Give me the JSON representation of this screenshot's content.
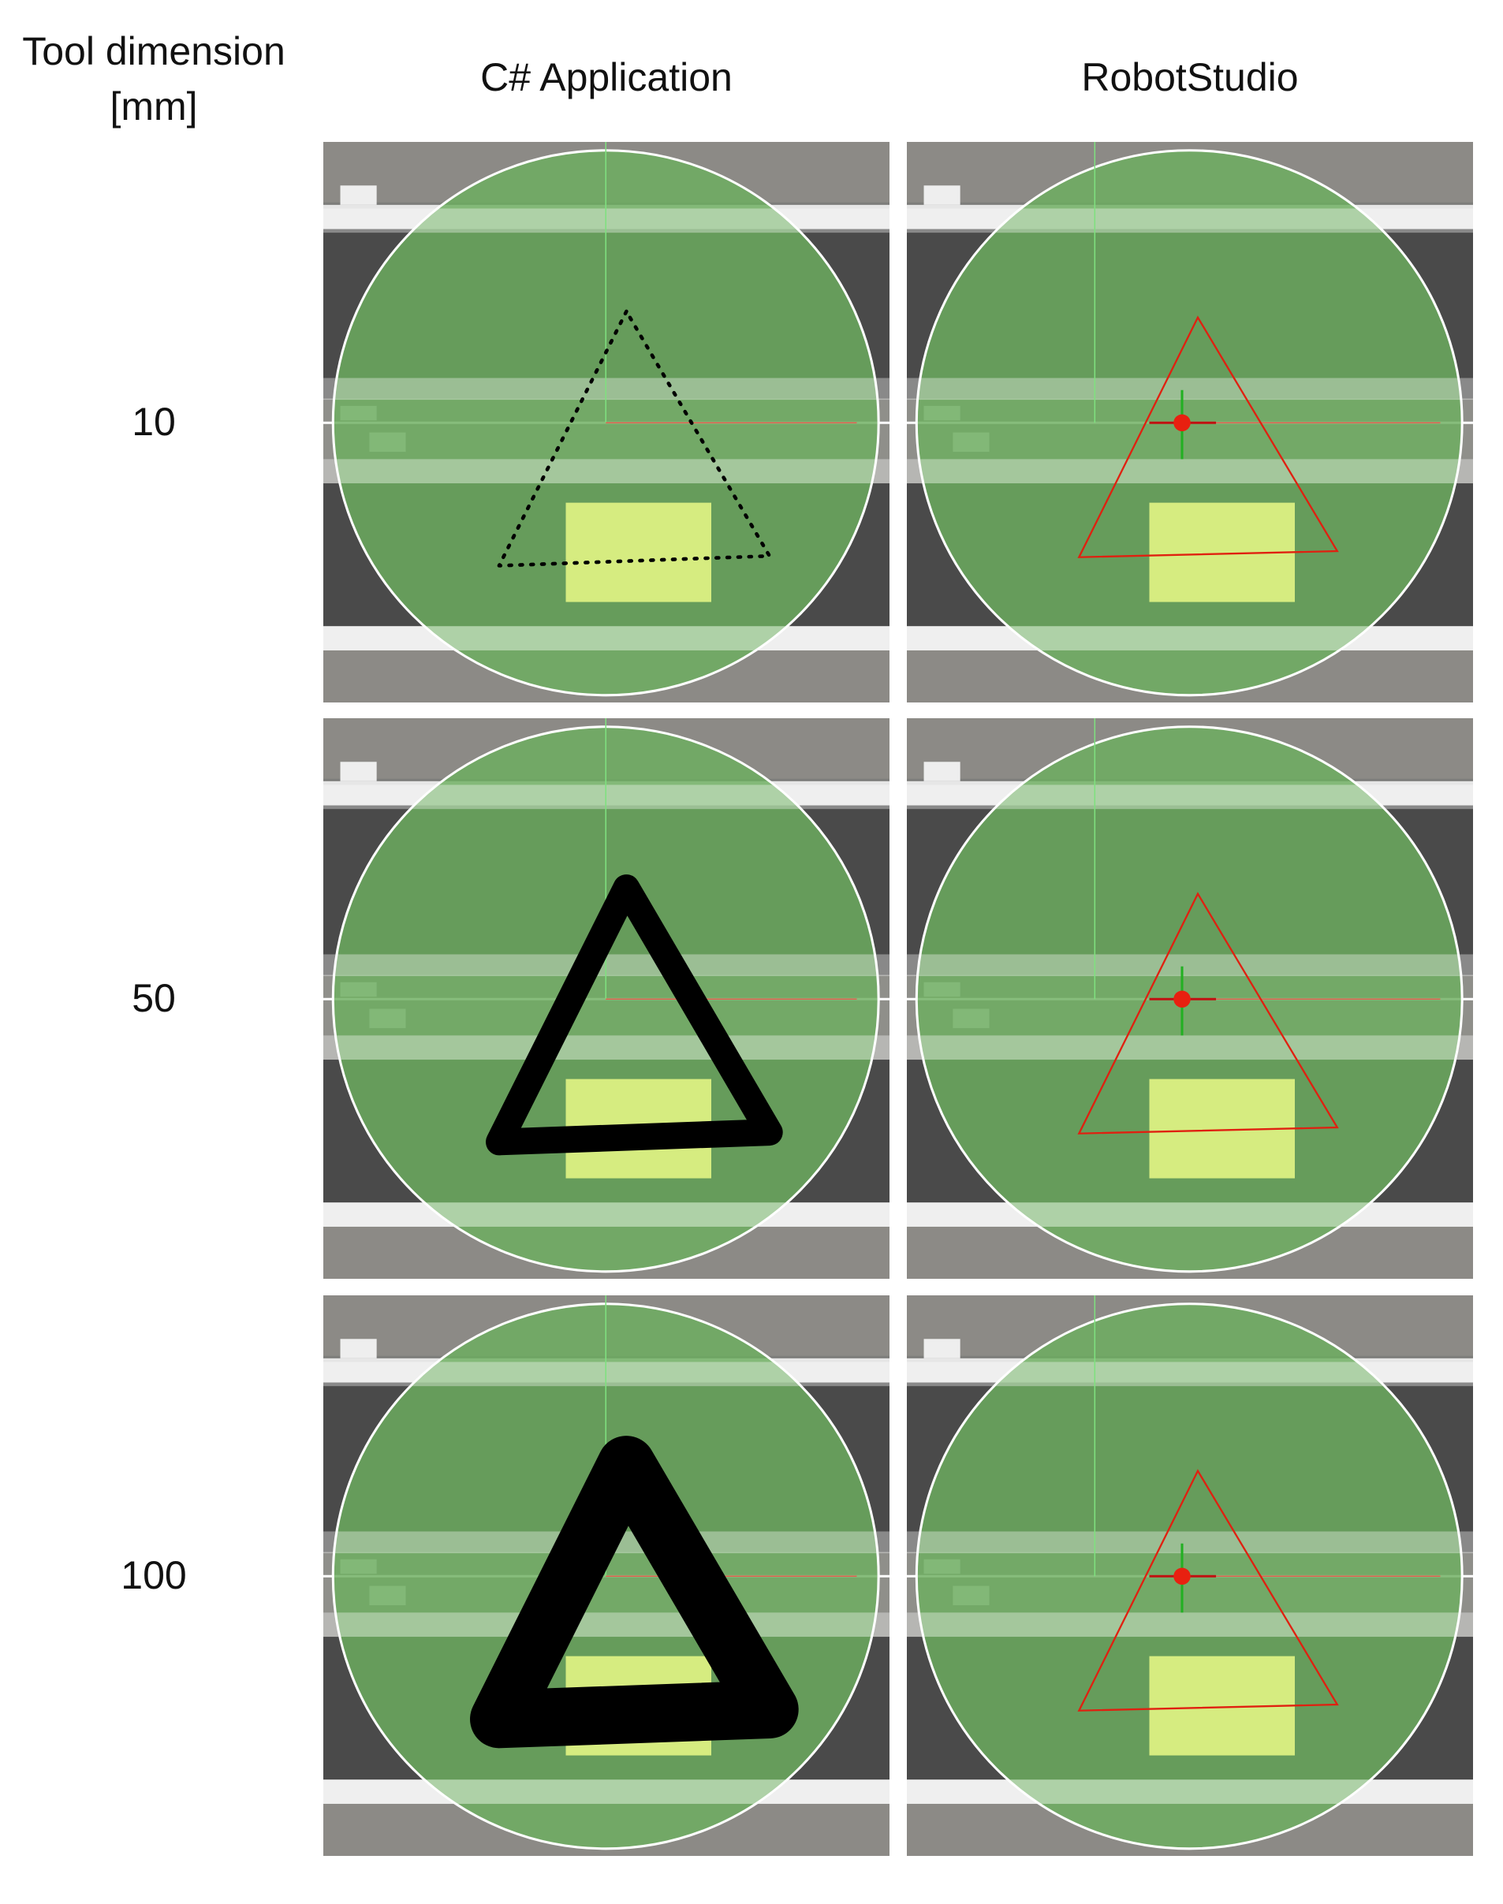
{
  "header": {
    "first_column": "Tool dimension [mm]",
    "columns": [
      "C# Application",
      "RobotStudio"
    ]
  },
  "rows": [
    {
      "tool_dimension": 10
    },
    {
      "tool_dimension": 50
    },
    {
      "tool_dimension": 100
    }
  ]
}
